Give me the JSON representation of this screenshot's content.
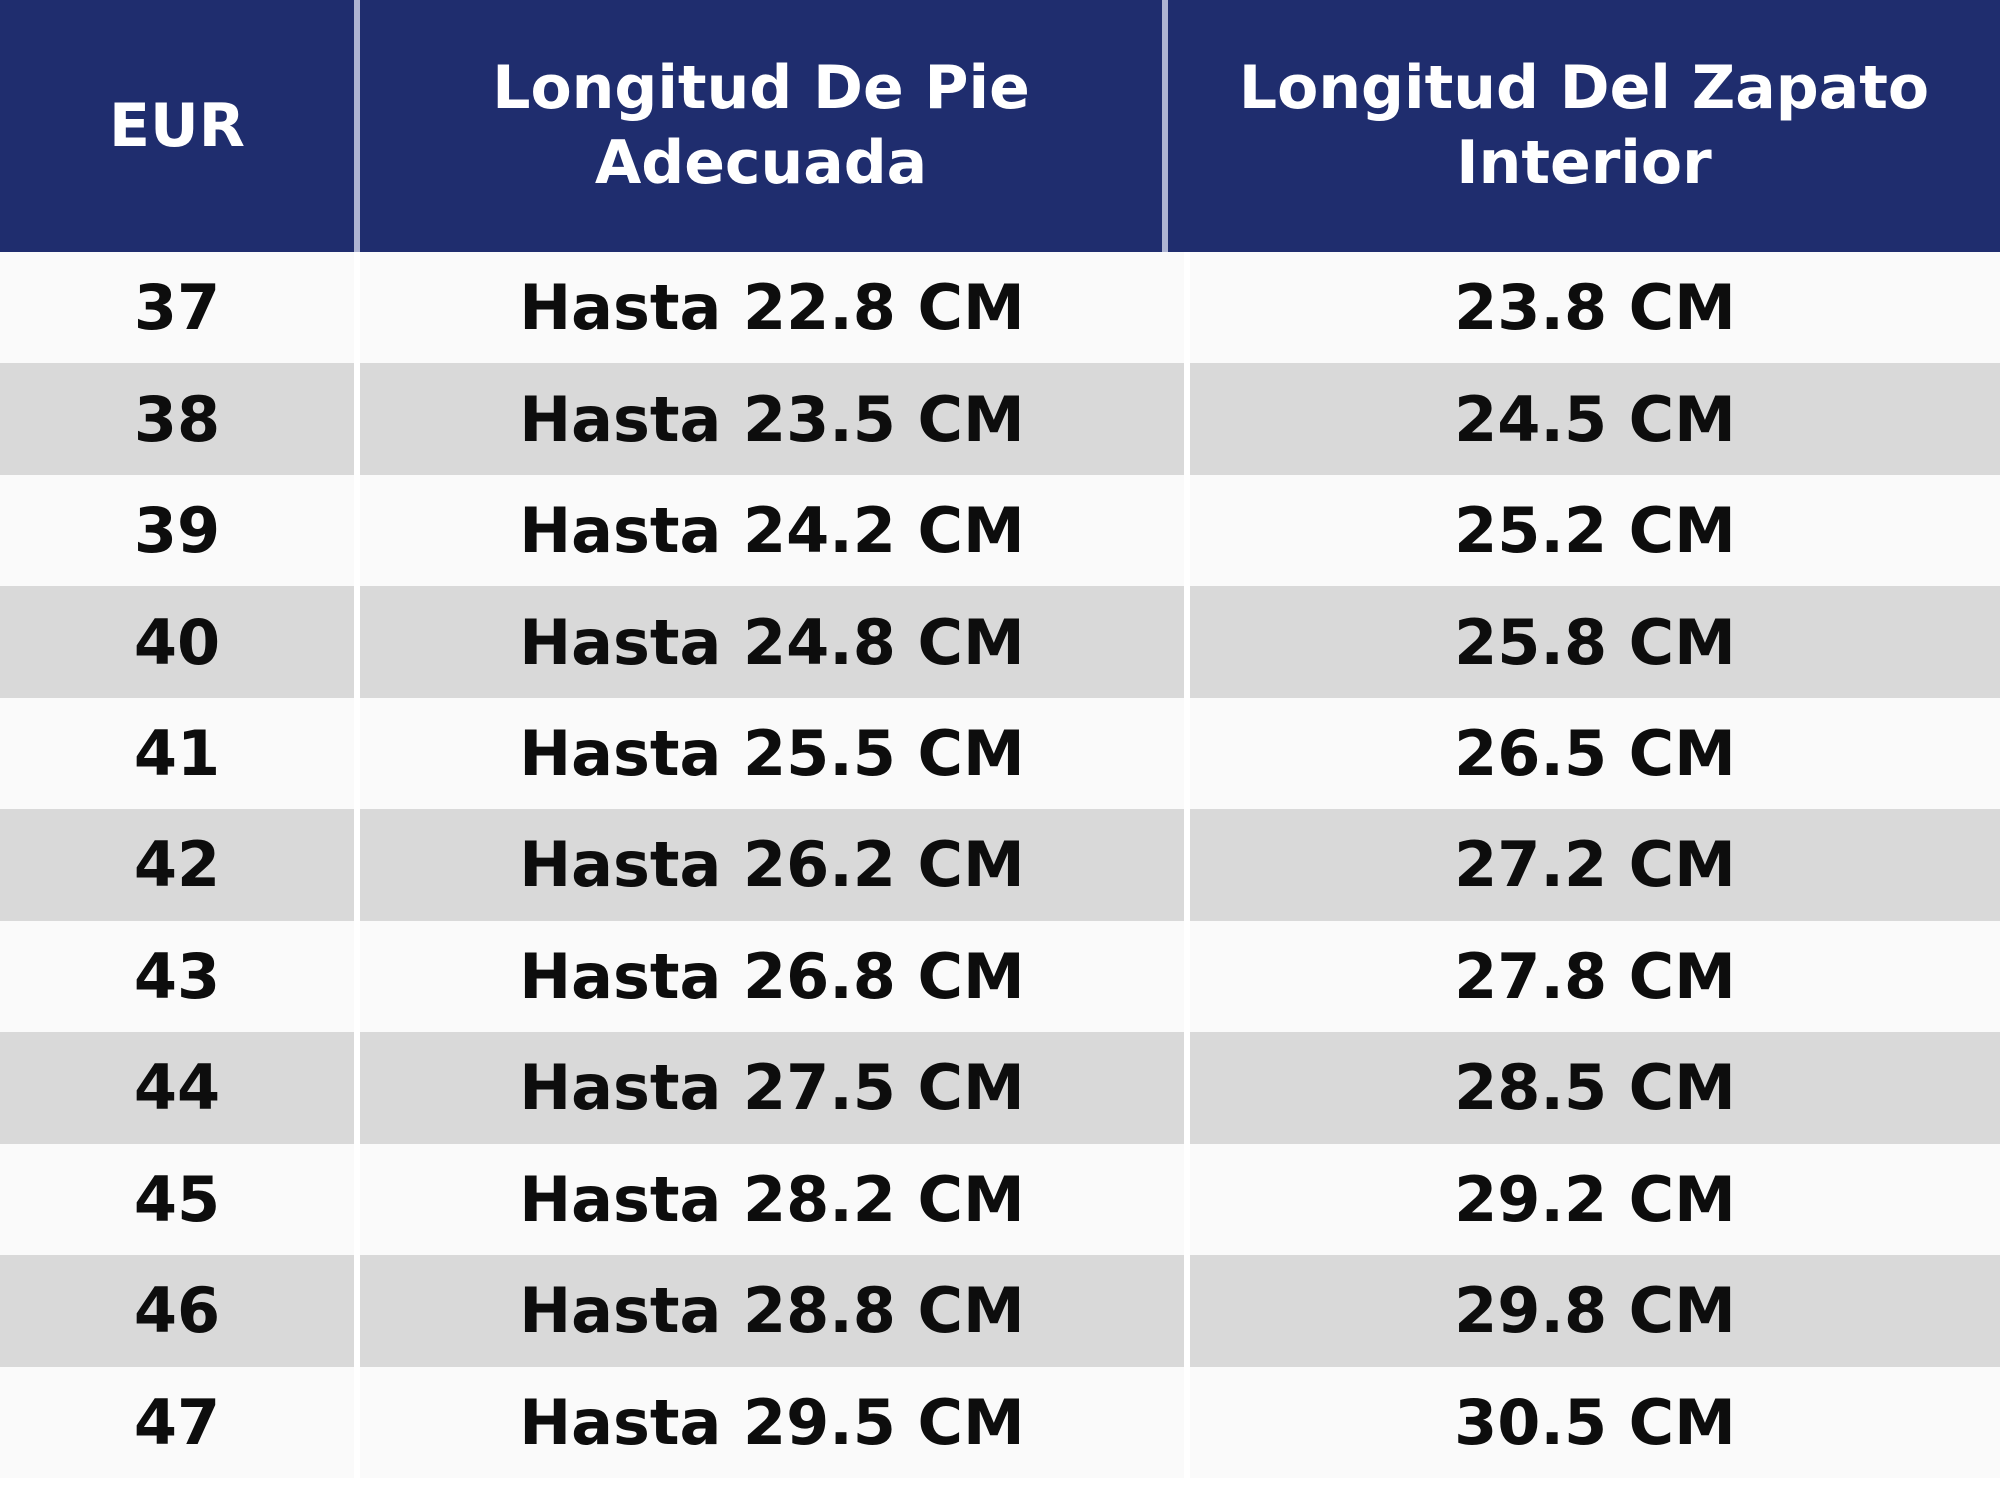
{
  "table": {
    "columns": {
      "eur": "EUR",
      "foot": "Longitud De Pie Adecuada",
      "shoe": "Longitud Del Zapato Interior"
    },
    "rows": [
      {
        "eur": "37",
        "foot": "Hasta 22.8 CM",
        "shoe": "23.8 CM"
      },
      {
        "eur": "38",
        "foot": "Hasta 23.5 CM",
        "shoe": "24.5 CM"
      },
      {
        "eur": "39",
        "foot": "Hasta 24.2 CM",
        "shoe": "25.2 CM"
      },
      {
        "eur": "40",
        "foot": "Hasta 24.8 CM",
        "shoe": "25.8 CM"
      },
      {
        "eur": "41",
        "foot": "Hasta 25.5 CM",
        "shoe": "26.5 CM"
      },
      {
        "eur": "42",
        "foot": "Hasta 26.2 CM",
        "shoe": "27.2 CM"
      },
      {
        "eur": "43",
        "foot": "Hasta 26.8 CM",
        "shoe": "27.8 CM"
      },
      {
        "eur": "44",
        "foot": "Hasta 27.5 CM",
        "shoe": "28.5 CM"
      },
      {
        "eur": "45",
        "foot": "Hasta 28.2 CM",
        "shoe": "29.2 CM"
      },
      {
        "eur": "46",
        "foot": "Hasta 28.8 CM",
        "shoe": "29.8 CM"
      },
      {
        "eur": "47",
        "foot": "Hasta 29.5 CM",
        "shoe": "30.5 CM"
      }
    ]
  },
  "colors": {
    "header_bg": "#1f2d6e",
    "header_text": "#ffffff",
    "header_divider": "#aeb4d2",
    "row_light": "#fafafa",
    "row_dark": "#d9d9d9",
    "body_text": "#0d0d0d",
    "cell_divider": "#ffffff"
  },
  "chart_data": {
    "type": "table",
    "title": "",
    "columns": [
      "EUR",
      "Longitud De Pie Adecuada",
      "Longitud Del Zapato Interior"
    ],
    "rows": [
      [
        "37",
        "Hasta 22.8 CM",
        "23.8 CM"
      ],
      [
        "38",
        "Hasta 23.5 CM",
        "24.5 CM"
      ],
      [
        "39",
        "Hasta 24.2 CM",
        "25.2 CM"
      ],
      [
        "40",
        "Hasta 24.8 CM",
        "25.8 CM"
      ],
      [
        "41",
        "Hasta 25.5 CM",
        "26.5 CM"
      ],
      [
        "42",
        "Hasta 26.2 CM",
        "27.2 CM"
      ],
      [
        "43",
        "Hasta 26.8 CM",
        "27.8 CM"
      ],
      [
        "44",
        "Hasta 27.5 CM",
        "28.5 CM"
      ],
      [
        "45",
        "Hasta 28.2 CM",
        "29.2 CM"
      ],
      [
        "46",
        "Hasta 28.8 CM",
        "29.8 CM"
      ],
      [
        "47",
        "Hasta 29.5 CM",
        "30.5 CM"
      ]
    ],
    "layout": {
      "header_style": "navy background, white bold text",
      "row_style": "alternating light (#fafafa) and gray (#d9d9d9) stripes",
      "alignment": "all cells centered"
    }
  }
}
